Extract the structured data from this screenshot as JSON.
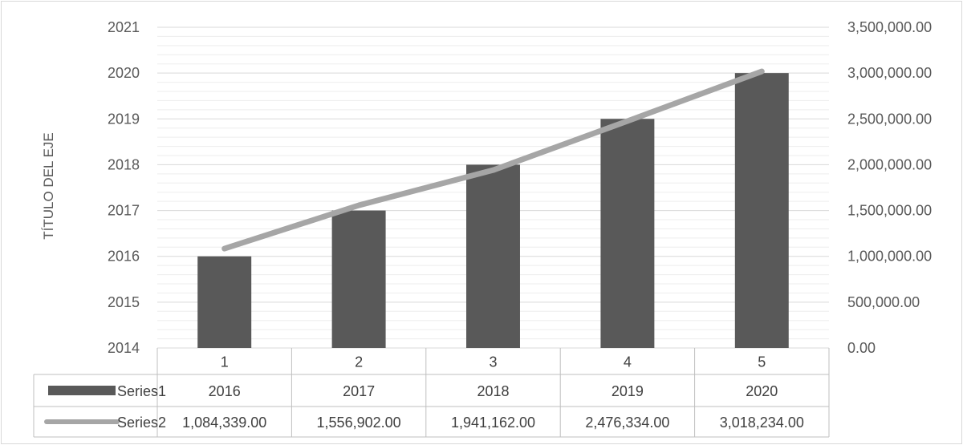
{
  "chart_data": {
    "type": "bar",
    "categories": [
      "1",
      "2",
      "3",
      "4",
      "5"
    ],
    "series": [
      {
        "name": "Series1",
        "type": "bar",
        "axis": "left",
        "values": [
          2016,
          2017,
          2018,
          2019,
          2020
        ],
        "labels": [
          "2016",
          "2017",
          "2018",
          "2019",
          "2020"
        ],
        "color": "#595959"
      },
      {
        "name": "Series2",
        "type": "line",
        "axis": "right",
        "values": [
          1084339,
          1556902,
          1941162,
          2476334,
          3018234
        ],
        "labels": [
          "1,084,339.00",
          "1,556,902.00",
          "1,941,162.00",
          "2,476,334.00",
          "3,018,234.00"
        ],
        "color": "#a6a6a6"
      }
    ],
    "y_left": {
      "label": "TÍTULO DEL EJE",
      "ylim": [
        2014,
        2021
      ],
      "ticks": [
        "2014",
        "2015",
        "2016",
        "2017",
        "2018",
        "2019",
        "2020",
        "2021"
      ]
    },
    "y_right": {
      "ylim": [
        0,
        3500000
      ],
      "ticks": [
        "0.00",
        "500,000.00",
        "1,000,000.00",
        "1,500,000.00",
        "2,000,000.00",
        "2,500,000.00",
        "3,000,000.00",
        "3,500,000.00"
      ]
    },
    "grid": true,
    "legend": "data-table",
    "data_table": true
  }
}
